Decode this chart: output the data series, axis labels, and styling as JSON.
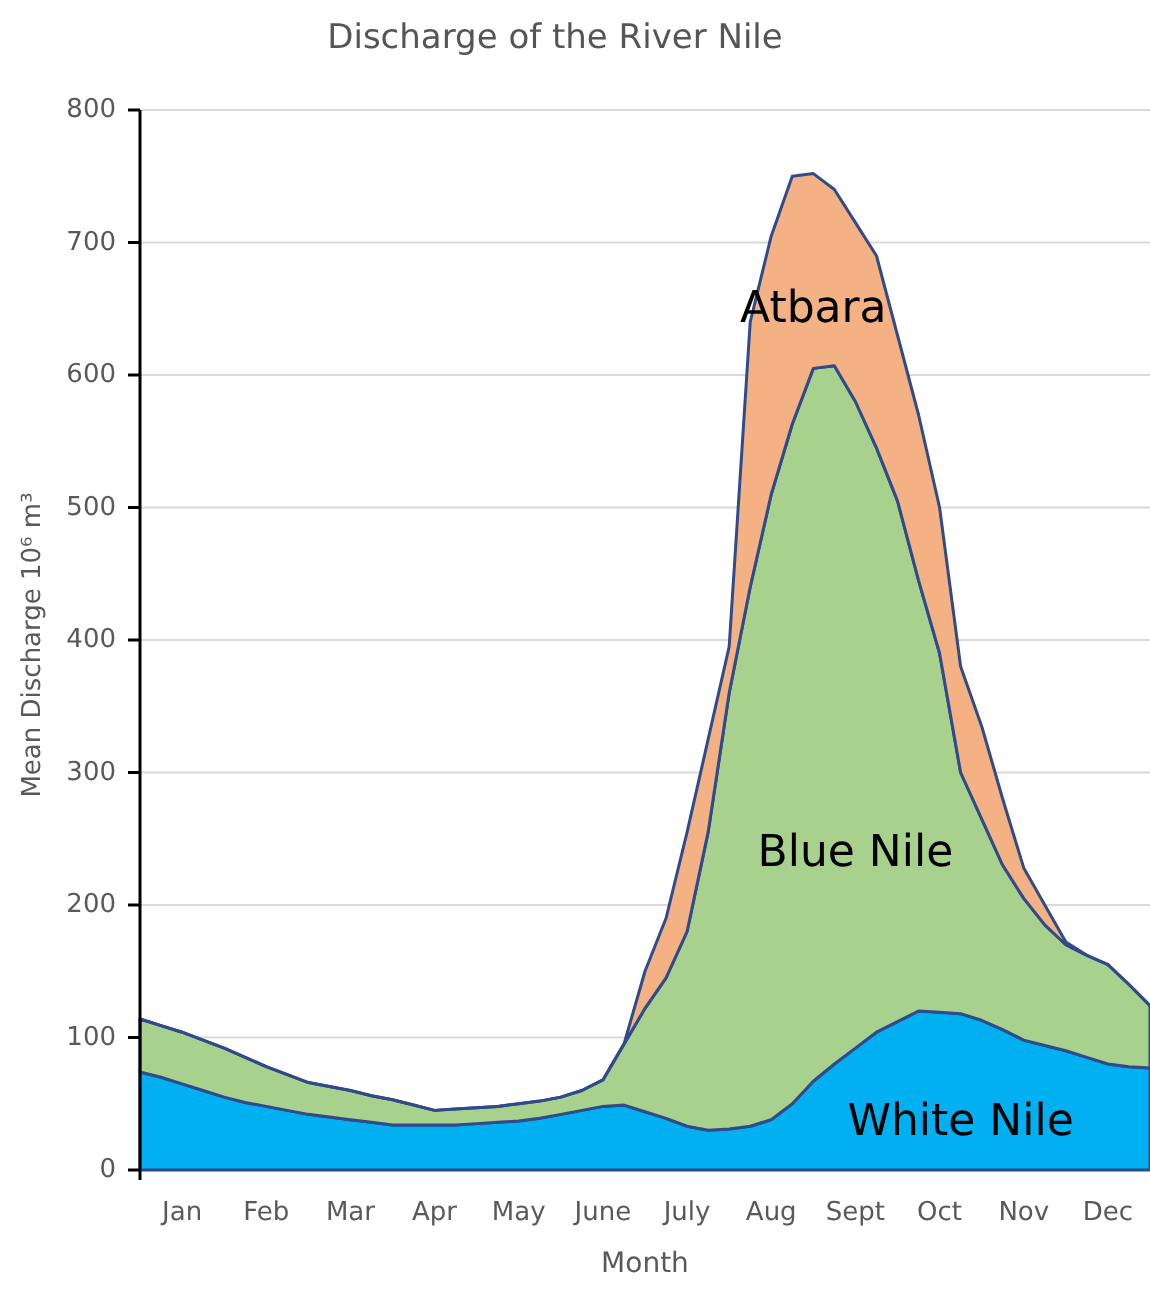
{
  "chart_data": {
    "type": "area",
    "title": "Discharge of the River Nile",
    "xlabel": "Month",
    "ylabel": "Mean Discharge  10⁶ m³",
    "stacked": true,
    "legend": false,
    "grid": "y",
    "categories": [
      null,
      null,
      "Jan",
      null,
      null,
      null,
      "Feb",
      null,
      null,
      null,
      "Mar",
      null,
      null,
      null,
      "Apr",
      null,
      null,
      null,
      "May",
      null,
      null,
      null,
      "June",
      null,
      null,
      null,
      "July",
      null,
      null,
      null,
      "Aug",
      null,
      null,
      null,
      "Sept",
      null,
      null,
      null,
      "Oct",
      null,
      null,
      null,
      "Nov",
      null,
      null,
      null,
      "Dec",
      null,
      null
    ],
    "ylim": [
      0,
      800
    ],
    "yticks": [
      0,
      100,
      200,
      300,
      400,
      500,
      600,
      700,
      800
    ],
    "series": [
      {
        "name": "White Nile",
        "color": "#00b0f0",
        "values": [
          74,
          70,
          65,
          60,
          55,
          51,
          48,
          45,
          42,
          40,
          38,
          36,
          34,
          34,
          34,
          34,
          35,
          36,
          37,
          39,
          42,
          45,
          48,
          49,
          44,
          39,
          33,
          30,
          31,
          33,
          38,
          50,
          67,
          80,
          92,
          104,
          112,
          120,
          119,
          118,
          113,
          106,
          98,
          94,
          90,
          85,
          80,
          78,
          77
        ]
      },
      {
        "name": "Blue Nile",
        "color": "#a9d18e",
        "values": [
          40,
          39,
          39,
          38,
          37,
          34,
          30,
          27,
          24,
          23,
          22,
          20,
          19,
          15,
          11,
          12,
          12,
          12,
          13,
          13,
          13,
          15,
          20,
          46,
          78,
          106,
          147,
          225,
          329,
          407,
          472,
          513,
          538,
          527,
          488,
          441,
          393,
          325,
          271,
          182,
          152,
          124,
          107,
          91,
          80,
          77,
          75,
          62,
          47
        ]
      },
      {
        "name": "Atbara",
        "color": "#f4b183",
        "values": [
          0,
          0,
          0,
          0,
          0,
          0,
          0,
          0,
          0,
          0,
          0,
          0,
          0,
          0,
          0,
          0,
          0,
          0,
          0,
          0,
          0,
          0,
          0,
          0,
          28,
          45,
          75,
          70,
          35,
          200,
          195,
          187,
          147,
          133,
          135,
          145,
          125,
          125,
          110,
          80,
          70,
          50,
          23,
          15,
          2,
          0,
          0,
          0,
          0
        ]
      }
    ]
  }
}
